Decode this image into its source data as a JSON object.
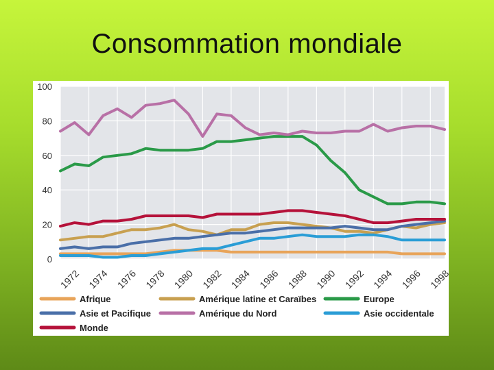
{
  "title": "Consommation mondiale",
  "chart_data": {
    "type": "line",
    "title": "",
    "xlabel": "",
    "ylabel": "",
    "ylim": [
      0,
      100
    ],
    "xlim": [
      1972,
      1999
    ],
    "y_ticks": [
      "0",
      "20",
      "40",
      "60",
      "80",
      "100"
    ],
    "x_ticks": [
      "1972",
      "1974",
      "1976",
      "1978",
      "1980",
      "1982",
      "1984",
      "1986",
      "1988",
      "1990",
      "1992",
      "1994",
      "1996",
      "1998"
    ],
    "grid": true,
    "legend_position": "bottom",
    "x": [
      1972,
      1973,
      1974,
      1975,
      1976,
      1977,
      1978,
      1979,
      1980,
      1981,
      1982,
      1983,
      1984,
      1985,
      1986,
      1987,
      1988,
      1989,
      1990,
      1991,
      1992,
      1993,
      1994,
      1995,
      1996,
      1997,
      1998,
      1999
    ],
    "series": [
      {
        "name": "Afrique",
        "color": "#e8a45a",
        "values": [
          3,
          3,
          3,
          3,
          3,
          3,
          3,
          4,
          5,
          5,
          5,
          5,
          4,
          4,
          4,
          4,
          4,
          4,
          4,
          4,
          4,
          4,
          4,
          4,
          3,
          3,
          3,
          3
        ]
      },
      {
        "name": "Amérique latine et Caraïbes",
        "color": "#c8a050",
        "values": [
          11,
          12,
          13,
          13,
          15,
          17,
          17,
          18,
          20,
          17,
          16,
          14,
          17,
          17,
          20,
          21,
          21,
          20,
          19,
          18,
          16,
          16,
          15,
          17,
          19,
          18,
          20,
          21
        ]
      },
      {
        "name": "Europe",
        "color": "#2a9a48",
        "values": [
          51,
          55,
          54,
          59,
          60,
          61,
          64,
          63,
          63,
          63,
          64,
          68,
          68,
          69,
          70,
          71,
          71,
          71,
          66,
          57,
          50,
          40,
          36,
          32,
          32,
          33,
          33,
          32
        ]
      },
      {
        "name": "Asie et Pacifique",
        "color": "#4a6fa8",
        "values": [
          6,
          7,
          6,
          7,
          7,
          9,
          10,
          11,
          12,
          12,
          13,
          14,
          15,
          15,
          16,
          17,
          18,
          18,
          18,
          18,
          19,
          18,
          17,
          17,
          19,
          20,
          21,
          22
        ]
      },
      {
        "name": "Amérique du Nord",
        "color": "#b870a6",
        "values": [
          74,
          79,
          72,
          83,
          87,
          82,
          89,
          90,
          92,
          84,
          71,
          84,
          83,
          76,
          72,
          73,
          72,
          74,
          73,
          73,
          74,
          74,
          78,
          74,
          76,
          77,
          77,
          75
        ]
      },
      {
        "name": "Asie occidentale",
        "color": "#2a9dd6",
        "values": [
          2,
          2,
          2,
          1,
          1,
          2,
          2,
          3,
          4,
          5,
          6,
          6,
          8,
          10,
          12,
          12,
          13,
          14,
          13,
          13,
          13,
          14,
          14,
          13,
          11,
          11,
          11,
          11
        ]
      },
      {
        "name": "Monde",
        "color": "#b5123a",
        "values": [
          19,
          21,
          20,
          22,
          22,
          23,
          25,
          25,
          25,
          25,
          24,
          26,
          26,
          26,
          26,
          27,
          28,
          28,
          27,
          26,
          25,
          23,
          21,
          21,
          22,
          23,
          23,
          23
        ]
      }
    ]
  }
}
